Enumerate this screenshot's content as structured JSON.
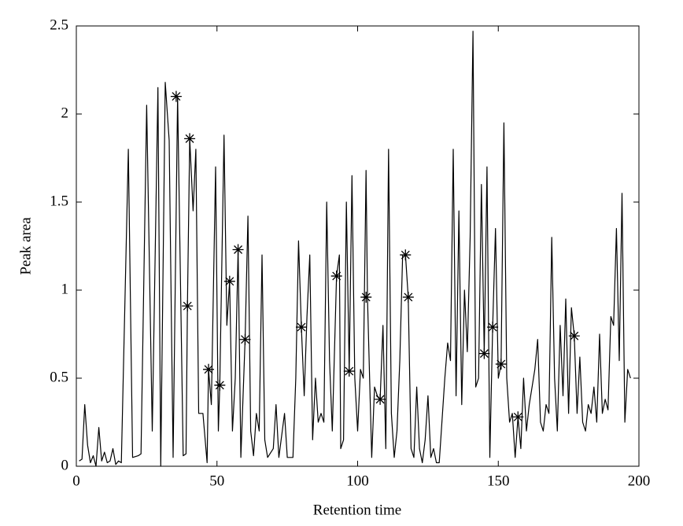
{
  "chart_data": {
    "type": "line",
    "xlabel": "Retention time",
    "ylabel": "Peak area",
    "color": "#000000",
    "x": [
      1,
      2,
      3,
      4,
      5,
      6,
      7,
      8,
      9,
      10,
      11,
      12,
      13,
      14,
      15,
      16,
      18.5,
      20,
      22,
      23,
      25,
      27,
      29,
      30,
      31.6,
      33,
      34.4,
      36,
      38,
      39,
      39.5,
      40.3,
      41.5,
      42.5,
      43.5,
      45,
      46.5,
      47,
      48,
      49.5,
      50.5,
      51,
      52.5,
      53.5,
      54.5,
      55.5,
      56.5,
      57.5,
      58.5,
      60,
      61,
      62,
      63,
      64,
      65,
      66,
      67,
      68,
      70,
      71,
      72,
      74,
      75,
      77,
      78,
      79,
      80,
      81,
      82,
      83,
      84,
      85,
      86,
      87,
      88,
      89,
      90,
      91,
      92.5,
      93.5,
      94,
      95,
      96,
      97,
      98,
      99,
      100,
      101,
      102,
      103,
      103.5,
      105,
      106,
      107,
      108,
      109,
      110,
      111,
      112,
      113,
      114,
      115,
      116,
      117,
      118,
      119,
      120,
      121,
      122,
      123,
      124,
      125,
      126,
      127,
      128,
      129,
      131,
      132,
      133,
      134,
      135,
      136,
      137,
      138,
      139,
      140,
      141,
      142,
      143,
      144,
      145,
      146,
      147,
      148,
      149,
      150,
      151,
      152,
      153,
      154,
      155,
      156,
      157,
      158,
      159,
      160,
      161,
      162,
      163,
      164,
      165,
      166,
      167,
      168,
      169,
      170,
      171,
      172,
      173,
      174,
      175,
      176,
      177,
      178,
      179,
      180,
      181,
      182,
      183,
      184,
      185,
      186,
      187,
      188,
      189,
      190,
      191,
      192,
      193,
      194,
      195,
      196,
      197
    ],
    "values": [
      0.03,
      0.04,
      0.35,
      0.12,
      0.02,
      0.06,
      0.0,
      0.22,
      0.03,
      0.08,
      0.02,
      0.03,
      0.1,
      0.01,
      0.03,
      0.02,
      1.8,
      0.05,
      0.06,
      0.07,
      2.05,
      0.2,
      2.15,
      0.0,
      2.18,
      1.85,
      0.05,
      2.1,
      0.06,
      0.07,
      0.91,
      1.86,
      1.45,
      1.8,
      0.3,
      0.3,
      0.02,
      0.55,
      0.35,
      1.7,
      0.2,
      0.46,
      1.88,
      0.8,
      1.05,
      0.2,
      0.5,
      1.23,
      0.05,
      0.72,
      1.42,
      0.2,
      0.06,
      0.3,
      0.2,
      1.2,
      0.15,
      0.05,
      0.1,
      0.35,
      0.05,
      0.3,
      0.05,
      0.05,
      0.5,
      1.28,
      0.79,
      0.4,
      0.85,
      1.2,
      0.15,
      0.5,
      0.25,
      0.3,
      0.25,
      1.5,
      0.6,
      0.2,
      1.08,
      1.2,
      0.1,
      0.15,
      1.5,
      0.54,
      1.65,
      0.5,
      0.2,
      0.55,
      0.5,
      1.68,
      0.96,
      0.05,
      0.45,
      0.4,
      0.38,
      0.8,
      0.1,
      1.8,
      0.3,
      0.05,
      0.2,
      0.6,
      1.2,
      1.2,
      0.96,
      0.1,
      0.05,
      0.45,
      0.1,
      0.02,
      0.15,
      0.4,
      0.05,
      0.1,
      0.02,
      0.02,
      0.5,
      0.7,
      0.6,
      1.8,
      0.4,
      1.45,
      0.35,
      1.0,
      0.65,
      1.3,
      2.47,
      0.45,
      0.5,
      1.6,
      0.64,
      1.7,
      0.05,
      0.79,
      1.35,
      0.5,
      0.58,
      1.95,
      0.5,
      0.25,
      0.3,
      0.05,
      0.28,
      0.1,
      0.5,
      0.2,
      0.35,
      0.45,
      0.55,
      0.72,
      0.25,
      0.2,
      0.35,
      0.3,
      1.3,
      0.5,
      0.2,
      0.8,
      0.4,
      0.95,
      0.3,
      0.9,
      0.74,
      0.3,
      0.62,
      0.25,
      0.2,
      0.35,
      0.3,
      0.45,
      0.25,
      0.75,
      0.3,
      0.38,
      0.32,
      0.85,
      0.8,
      1.35,
      0.6,
      1.55,
      0.25,
      0.55,
      0.5
    ],
    "markers": {
      "x": [
        35.5,
        40.3,
        39.5,
        47,
        51,
        54.5,
        57.5,
        60,
        80,
        92.5,
        97,
        103,
        108,
        117,
        118,
        145,
        148,
        151,
        157,
        177
      ],
      "values": [
        2.1,
        1.86,
        0.91,
        0.55,
        0.46,
        1.05,
        1.23,
        0.72,
        0.79,
        1.08,
        0.54,
        0.96,
        0.38,
        1.2,
        0.96,
        0.64,
        0.79,
        0.58,
        0.28,
        0.74
      ]
    },
    "xlim": [
      0,
      200
    ],
    "xticks": [
      0,
      50,
      100,
      150,
      200
    ],
    "ylim": [
      0,
      2.5
    ],
    "yticks": [
      0,
      0.5,
      1,
      1.5,
      2,
      2.5
    ]
  }
}
